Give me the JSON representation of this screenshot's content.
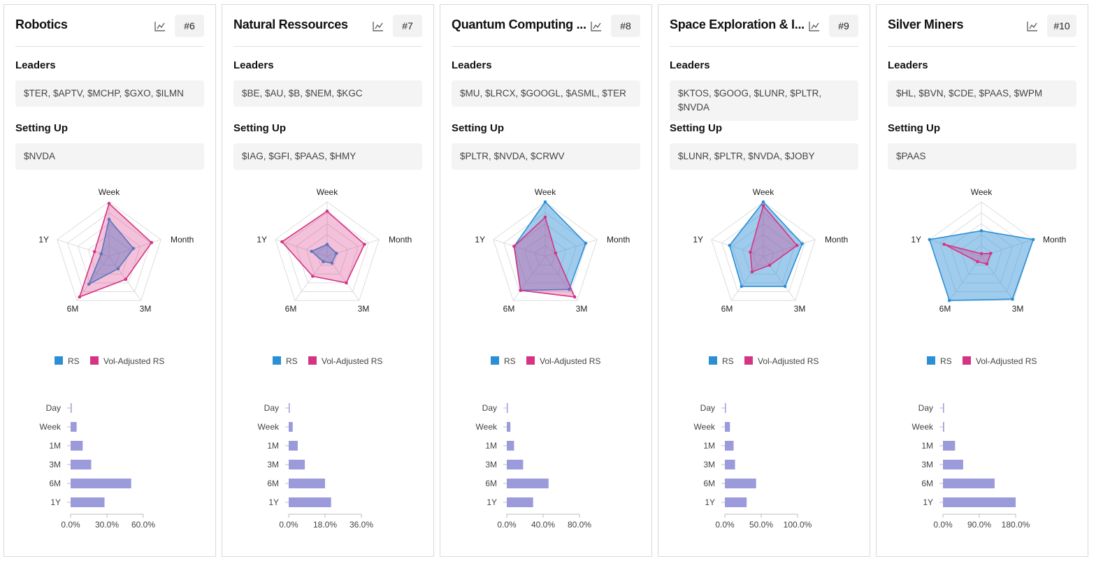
{
  "labels": {
    "leaders": "Leaders",
    "setting_up": "Setting Up"
  },
  "legend": {
    "rs": "RS",
    "vol": "Vol-Adjusted RS"
  },
  "colors": {
    "rs": "#2b8fd6",
    "vol": "#d63384",
    "bar": "#9b9bdc",
    "axis": "#bbbbbb"
  },
  "icons": {
    "chart": "line-chart-icon"
  },
  "cards": [
    {
      "title": "Robotics",
      "rank": "#6",
      "leaders": "$TER, $APTV, $MCHP, $GXO, $ILMN",
      "setting_up": "$NVDA",
      "chart_data": [
        {
          "type": "radar",
          "axes": [
            "Week",
            "Month",
            "3M",
            "6M",
            "1Y"
          ],
          "range": [
            0,
            1
          ],
          "series": [
            {
              "name": "RS",
              "values": [
                0.68,
                0.47,
                0.28,
                0.63,
                0.15
              ]
            },
            {
              "name": "Vol-Adjusted RS",
              "values": [
                0.97,
                0.82,
                0.52,
                0.92,
                0.28
              ]
            }
          ]
        },
        {
          "type": "bar",
          "orientation": "horizontal",
          "categories": [
            "Day",
            "Week",
            "1M",
            "3M",
            "6M",
            "1Y"
          ],
          "values": [
            0.5,
            5,
            10,
            17,
            50,
            28
          ],
          "xlim": [
            0,
            60
          ],
          "ticks": [
            "0.0%",
            "30.0%",
            "60.0%"
          ]
        }
      ]
    },
    {
      "title": "Natural Ressources",
      "rank": "#7",
      "leaders": "$BE, $AU, $B, $NEM, $KGC",
      "setting_up": "$IAG, $GFI, $PAAS, $HMY",
      "chart_data": [
        {
          "type": "radar",
          "axes": [
            "Week",
            "Month",
            "3M",
            "6M",
            "1Y"
          ],
          "range": [
            0,
            1
          ],
          "series": [
            {
              "name": "RS",
              "values": [
                0.22,
                0.18,
                0.15,
                0.12,
                0.3
              ]
            },
            {
              "name": "Vol-Adjusted RS",
              "values": [
                0.83,
                0.72,
                0.6,
                0.45,
                0.87
              ]
            }
          ]
        },
        {
          "type": "bar",
          "orientation": "horizontal",
          "categories": [
            "Day",
            "Week",
            "1M",
            "3M",
            "6M",
            "1Y"
          ],
          "values": [
            0.2,
            2,
            4.5,
            8,
            18,
            21
          ],
          "xlim": [
            0,
            36
          ],
          "ticks": [
            "0.0%",
            "18.0%",
            "36.0%"
          ]
        }
      ]
    },
    {
      "title": "Quantum Computing ...",
      "rank": "#8",
      "leaders": "$MU, $LRCX, $GOOGL, $ASML, $TER",
      "setting_up": "$PLTR, $NVDA, $CRWV",
      "chart_data": [
        {
          "type": "radar",
          "axes": [
            "Week",
            "Month",
            "3M",
            "6M",
            "1Y"
          ],
          "range": [
            0,
            1
          ],
          "series": [
            {
              "name": "RS",
              "values": [
                1.0,
                0.78,
                0.75,
                0.77,
                0.6
              ]
            },
            {
              "name": "Vol-Adjusted RS",
              "values": [
                0.72,
                0.2,
                0.92,
                0.77,
                0.6
              ]
            }
          ]
        },
        {
          "type": "bar",
          "orientation": "horizontal",
          "categories": [
            "Day",
            "Week",
            "1M",
            "3M",
            "6M",
            "1Y"
          ],
          "values": [
            1,
            4,
            8,
            18,
            46,
            29
          ],
          "xlim": [
            0,
            80
          ],
          "ticks": [
            "0.0%",
            "40.0%",
            "80.0%"
          ]
        }
      ]
    },
    {
      "title": "Space Exploration & I...",
      "rank": "#9",
      "leaders": "$KTOS, $GOOG, $LUNR, $PLTR, $NVDA",
      "setting_up": "$LUNR, $PLTR, $NVDA, $JOBY",
      "chart_data": [
        {
          "type": "radar",
          "axes": [
            "Week",
            "Month",
            "3M",
            "6M",
            "1Y"
          ],
          "range": [
            0,
            1
          ],
          "series": [
            {
              "name": "RS",
              "values": [
                1.0,
                0.75,
                0.68,
                0.68,
                0.65
              ]
            },
            {
              "name": "Vol-Adjusted RS",
              "values": [
                0.93,
                0.65,
                0.2,
                0.35,
                0.25
              ]
            }
          ]
        },
        {
          "type": "bar",
          "orientation": "horizontal",
          "categories": [
            "Day",
            "Week",
            "1M",
            "3M",
            "6M",
            "1Y"
          ],
          "values": [
            1,
            7,
            12,
            14,
            43,
            30
          ],
          "xlim": [
            0,
            100
          ],
          "ticks": [
            "0.0%",
            "50.0%",
            "100.0%"
          ]
        }
      ]
    },
    {
      "title": "Silver Miners",
      "rank": "#10",
      "leaders": "$HL, $BVN, $CDE, $PAAS, $WPM",
      "setting_up": "$PAAS",
      "chart_data": [
        {
          "type": "radar",
          "axes": [
            "Week",
            "Month",
            "3M",
            "6M",
            "1Y"
          ],
          "range": [
            0,
            1
          ],
          "series": [
            {
              "name": "RS",
              "values": [
                0.47,
                1.0,
                0.97,
                1.0,
                1.0
              ]
            },
            {
              "name": "Vol-Adjusted RS",
              "values": [
                0.05,
                0.18,
                0.17,
                0.12,
                0.72
              ]
            }
          ]
        },
        {
          "type": "bar",
          "orientation": "horizontal",
          "categories": [
            "Day",
            "Week",
            "1M",
            "3M",
            "6M",
            "1Y"
          ],
          "values": [
            2,
            3,
            30,
            50,
            128,
            180
          ],
          "xlim": [
            0,
            180
          ],
          "ticks": [
            "0.0%",
            "90.0%",
            "180.0%"
          ]
        }
      ]
    }
  ]
}
